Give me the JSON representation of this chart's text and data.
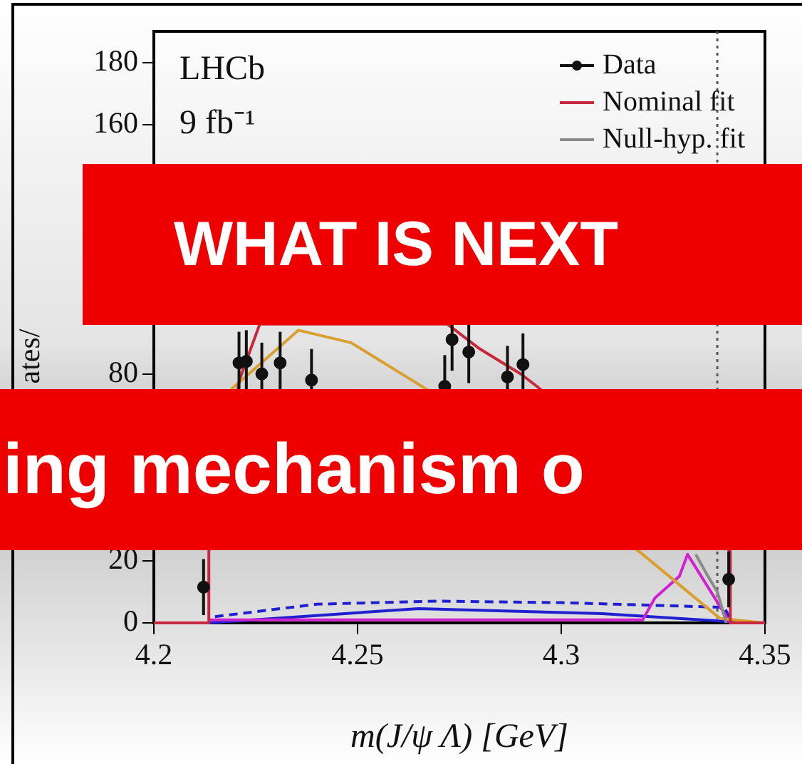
{
  "chart_data": {
    "type": "line",
    "xlabel": "m(J/ψ Λ) [GeV]",
    "ylabel": "ates/",
    "annotations": [
      "LHCb",
      "9 fb⁻¹",
      "WHAT IS NEXT",
      "ing mechanism o"
    ],
    "xlim": [
      4.2,
      4.35
    ],
    "xticks": [
      4.2,
      4.25,
      4.3,
      4.35
    ],
    "ylim": [
      0,
      190
    ],
    "yticks": [
      0,
      20,
      {
        "value": 40,
        "label": null
      },
      {
        "value": 60,
        "label": null
      },
      80,
      {
        "value": 100,
        "label": null
      },
      {
        "value": 120,
        "label": null
      },
      {
        "value": 140,
        "label": null
      },
      160,
      180
    ],
    "grid": false,
    "legend": "top right",
    "series": [
      {
        "name": "Data",
        "type": "scatter",
        "color": "#111111",
        "marker": "circle",
        "x": [
          4.2122,
          4.2209,
          4.2227,
          4.2265,
          4.231,
          4.2387,
          4.2714,
          4.2732,
          4.2773,
          4.2868,
          4.2906,
          4.3411
        ],
        "values": [
          11.5,
          83.5,
          84,
          80,
          83.5,
          78,
          76,
          91,
          87,
          79,
          83,
          14
        ],
        "errors": [
          9,
          10,
          10,
          10,
          10,
          10,
          10,
          10,
          10,
          10,
          10,
          9
        ]
      },
      {
        "name": "Nominal fit",
        "color": "#c8283c",
        "x": [
          4.2,
          4.2135,
          4.2135,
          4.221,
          4.226,
          4.272,
          4.28,
          4.29,
          4.294,
          4.3415,
          4.3415,
          4.35
        ],
        "values": [
          0,
          0,
          23,
          78,
          96,
          96,
          88,
          80,
          76,
          23,
          0,
          0
        ]
      },
      {
        "name": "Null-hyp. fit",
        "color": "#8a8a8a",
        "x": [
          4.333,
          4.336,
          4.3383,
          4.3405
        ],
        "values": [
          22,
          15,
          10,
          0
        ]
      },
      {
        "color": "#d9a030",
        "x": [
          4.219,
          4.2355,
          4.2484,
          4.267,
          4.32,
          4.339,
          4.35
        ],
        "values": [
          75,
          94,
          90,
          75,
          22,
          1.4,
          0
        ]
      },
      {
        "color": "#d020d0",
        "x": [
          4.2135,
          4.25,
          4.32,
          4.323,
          4.329,
          4.331,
          4.3415,
          4.35
        ],
        "values": [
          1,
          1,
          1,
          8,
          15,
          22,
          0,
          0
        ]
      },
      {
        "color": "#2020d0",
        "x": [
          4.2135,
          4.265,
          4.31,
          4.34,
          4.345
        ],
        "values": [
          0,
          4.6,
          3,
          0.5,
          0
        ]
      },
      {
        "color": "#2020d0",
        "line_style": "dashed",
        "x": [
          4.215,
          4.24,
          4.27,
          4.3,
          4.34,
          4.342
        ],
        "values": [
          2,
          6,
          7,
          6.5,
          5,
          0
        ]
      }
    ],
    "ref_lines": [
      {
        "axis": "x",
        "value": 4.3383,
        "color": "#555555",
        "line_style": "dotted"
      }
    ]
  }
}
